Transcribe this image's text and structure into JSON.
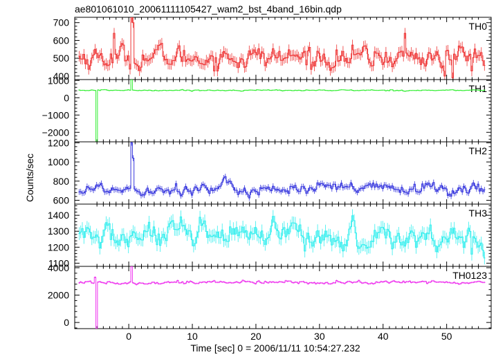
{
  "chart_data": {
    "type": "line",
    "title": "ae801061010_20061111105427_wam2_bst_4band_16bin.qdp",
    "xlabel": "Time [sec] 0 = 2006/11/11 10:54:27.232",
    "ylabel": "Counts/sec",
    "xlim": [
      -8.5,
      57
    ],
    "x_ticks": [
      0,
      10,
      20,
      30,
      40,
      50
    ],
    "x_tick_labels": [
      "0",
      "10",
      "20",
      "30",
      "40",
      "50"
    ],
    "bin_width": 0.25,
    "x_start": -7.8,
    "x_end": 56.0,
    "panels": [
      {
        "name": "TH0",
        "color": "#ee3333",
        "ylim": [
          380,
          730
        ],
        "y_ticks": [
          400,
          500,
          600,
          700
        ],
        "y_tick_labels": [
          "400",
          "500",
          "600",
          "700"
        ],
        "baseline": 505,
        "noise_sd": 48,
        "error": 30,
        "events": [
          {
            "x": -2.2,
            "y": 640
          },
          {
            "x": 0.5,
            "y": 730
          },
          {
            "x": 0.75,
            "y": 700
          },
          {
            "x": 43.5,
            "y": 640
          },
          {
            "x": 51.0,
            "y": 390
          },
          {
            "x": 49.75,
            "y": 400
          }
        ]
      },
      {
        "name": "TH1",
        "color": "#33ee33",
        "ylim": [
          -2550,
          1050
        ],
        "y_ticks": [
          -2000,
          -1000,
          0,
          1000
        ],
        "y_tick_labels": [
          "−2000",
          "−1000",
          "0",
          "1000"
        ],
        "baseline": 430,
        "noise_sd": 25,
        "error": 30,
        "events": [
          {
            "x": -5.0,
            "y": -2550
          },
          {
            "x": -5.25,
            "y": 420
          },
          {
            "x": 0.5,
            "y": 1050
          }
        ]
      },
      {
        "name": "TH2",
        "color": "#3333dd",
        "ylim": [
          560,
          1210
        ],
        "y_ticks": [
          600,
          800,
          1000,
          1200
        ],
        "y_tick_labels": [
          "600",
          "800",
          "1000",
          "1200"
        ],
        "baseline": 720,
        "noise_sd": 50,
        "error": 30,
        "events": [
          {
            "x": 0.5,
            "y": 1200
          },
          {
            "x": 0.75,
            "y": 1040
          }
        ]
      },
      {
        "name": "TH3",
        "color": "#33eeee",
        "ylim": [
          1080,
          1470
        ],
        "y_ticks": [
          1100,
          1200,
          1300,
          1400
        ],
        "y_tick_labels": [
          "1100",
          "1200",
          "1300",
          "1400"
        ],
        "baseline": 1265,
        "noise_sd": 65,
        "error": 40,
        "events": []
      },
      {
        "name": "TH0123",
        "color": "#ee33ee",
        "ylim": [
          -450,
          4100
        ],
        "y_ticks": [
          0,
          2000,
          4000
        ],
        "y_tick_labels": [
          "0",
          "2000",
          "4000"
        ],
        "baseline": 2930,
        "noise_sd": 90,
        "error": 60,
        "events": [
          {
            "x": -5.0,
            "y": -450
          },
          {
            "x": 0.5,
            "y": 4100
          },
          {
            "x": -5.25,
            "y": 3300
          }
        ]
      }
    ]
  }
}
